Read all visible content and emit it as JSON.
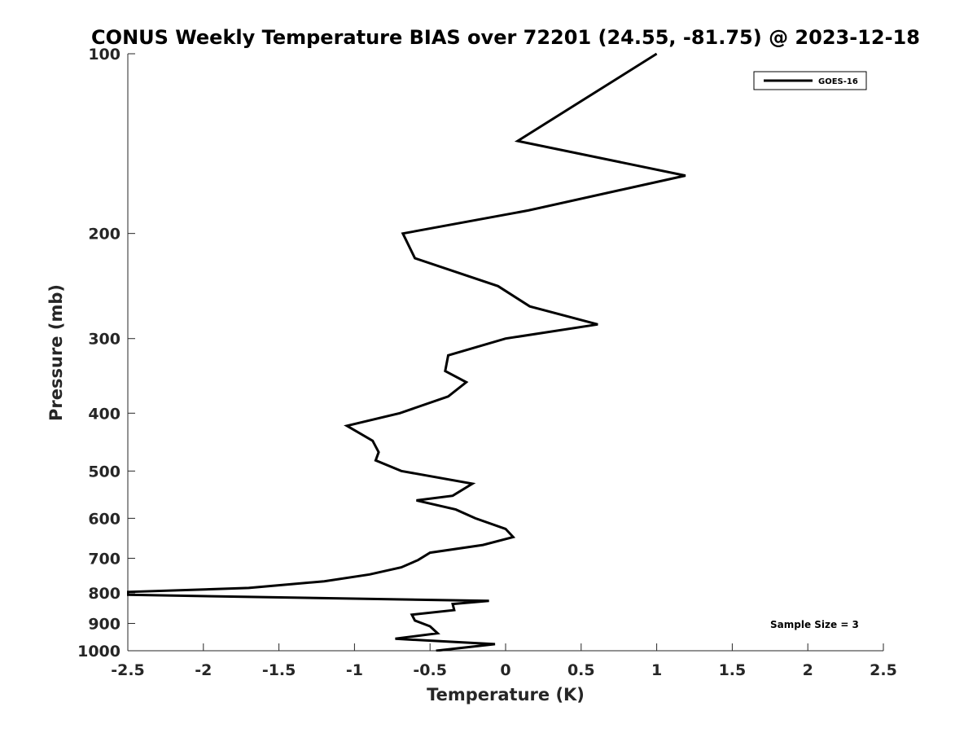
{
  "chart_data": {
    "type": "line",
    "title": "CONUS Weekly Temperature BIAS over 72201 (24.55, -81.75) @ 2023-12-18",
    "xlabel": "Temperature (K)",
    "ylabel": "Pressure (mb)",
    "xlim": [
      -2.5,
      2.5
    ],
    "ylim": [
      1000,
      100
    ],
    "y_scale": "log",
    "y_reversed": true,
    "x_ticks": [
      -2.5,
      -2,
      -1.5,
      -1,
      -0.5,
      0,
      0.5,
      1,
      1.5,
      2,
      2.5
    ],
    "x_tick_labels": [
      "-2.5",
      "-2",
      "-1.5",
      "-1",
      "-0.5",
      "0",
      "0.5",
      "1",
      "1.5",
      "2",
      "2.5"
    ],
    "y_ticks": [
      100,
      200,
      300,
      400,
      500,
      600,
      700,
      800,
      900,
      1000
    ],
    "y_tick_labels": [
      "100",
      "200",
      "300",
      "400",
      "500",
      "600",
      "700",
      "800",
      "900",
      "1000"
    ],
    "grid": false,
    "legend_position": "top-right",
    "color": "#000000",
    "annotation": "Sample Size = 3",
    "series": [
      {
        "name": "GOES-16",
        "points": [
          {
            "x": 1.0,
            "y": 100
          },
          {
            "x": 0.08,
            "y": 140
          },
          {
            "x": 1.19,
            "y": 160
          },
          {
            "x": 0.15,
            "y": 183
          },
          {
            "x": -0.68,
            "y": 200
          },
          {
            "x": -0.6,
            "y": 220
          },
          {
            "x": -0.05,
            "y": 245
          },
          {
            "x": 0.16,
            "y": 265
          },
          {
            "x": 0.61,
            "y": 284
          },
          {
            "x": 0.0,
            "y": 300
          },
          {
            "x": -0.38,
            "y": 320
          },
          {
            "x": -0.4,
            "y": 340
          },
          {
            "x": -0.26,
            "y": 355
          },
          {
            "x": -0.38,
            "y": 375
          },
          {
            "x": -0.7,
            "y": 400
          },
          {
            "x": -1.05,
            "y": 420
          },
          {
            "x": -0.88,
            "y": 445
          },
          {
            "x": -0.84,
            "y": 465
          },
          {
            "x": -0.86,
            "y": 480
          },
          {
            "x": -0.69,
            "y": 500
          },
          {
            "x": -0.22,
            "y": 525
          },
          {
            "x": -0.35,
            "y": 550
          },
          {
            "x": -0.59,
            "y": 560
          },
          {
            "x": -0.33,
            "y": 580
          },
          {
            "x": -0.2,
            "y": 600
          },
          {
            "x": 0.0,
            "y": 625
          },
          {
            "x": 0.05,
            "y": 645
          },
          {
            "x": -0.15,
            "y": 665
          },
          {
            "x": -0.5,
            "y": 685
          },
          {
            "x": -0.58,
            "y": 705
          },
          {
            "x": -0.69,
            "y": 725
          },
          {
            "x": -0.9,
            "y": 745
          },
          {
            "x": -1.2,
            "y": 765
          },
          {
            "x": -1.7,
            "y": 785
          },
          {
            "x": -2.5,
            "y": 797
          },
          {
            "x": -2.5,
            "y": 806
          },
          {
            "x": -0.11,
            "y": 825
          },
          {
            "x": -0.35,
            "y": 835
          },
          {
            "x": -0.34,
            "y": 855
          },
          {
            "x": -0.62,
            "y": 870
          },
          {
            "x": -0.6,
            "y": 890
          },
          {
            "x": -0.5,
            "y": 910
          },
          {
            "x": -0.45,
            "y": 935
          },
          {
            "x": -0.73,
            "y": 955
          },
          {
            "x": -0.07,
            "y": 975
          },
          {
            "x": -0.46,
            "y": 1000
          }
        ]
      }
    ]
  }
}
